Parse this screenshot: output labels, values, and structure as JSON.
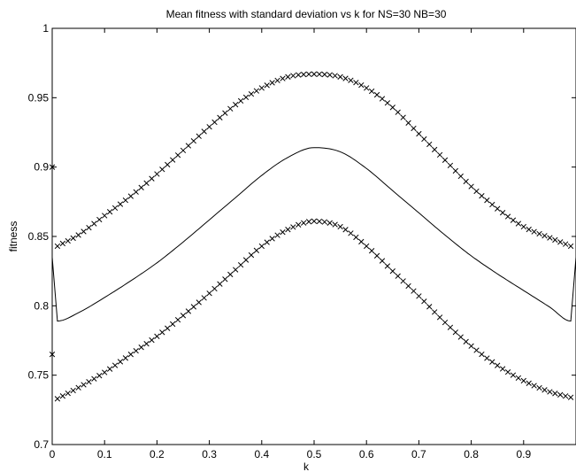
{
  "chart_data": {
    "type": "line",
    "title": "Mean fitness with standard deviation vs k for NS=30 NB=30",
    "xlabel": "k",
    "ylabel": "fitness",
    "xlim": [
      0,
      1
    ],
    "ylim": [
      0.7,
      1
    ],
    "grid": false,
    "xticks": [
      0,
      0.1,
      0.2,
      0.3,
      0.4,
      0.5,
      0.6,
      0.7,
      0.8,
      0.9
    ],
    "xtick_labels": [
      "0",
      "0.1",
      "0.2",
      "0.3",
      "0.4",
      "0.5",
      "0.6",
      "0.7",
      "0.8",
      "0.9"
    ],
    "yticks": [
      0.7,
      0.75,
      0.8,
      0.85,
      0.9,
      0.95,
      1
    ],
    "ytick_labels": [
      "0.7",
      "0.75",
      "0.8",
      "0.85",
      "0.9",
      "0.95",
      "1"
    ],
    "series": [
      {
        "style": "solid-line",
        "color": "#000000",
        "x": [
          0,
          0.01,
          0.05,
          0.1,
          0.15,
          0.2,
          0.25,
          0.3,
          0.35,
          0.4,
          0.45,
          0.5,
          0.55,
          0.6,
          0.65,
          0.7,
          0.75,
          0.8,
          0.85,
          0.9,
          0.95,
          0.99,
          1
        ],
        "values": [
          0.835,
          0.789,
          0.795,
          0.806,
          0.818,
          0.831,
          0.846,
          0.862,
          0.878,
          0.894,
          0.907,
          0.914,
          0.911,
          0.899,
          0.883,
          0.867,
          0.851,
          0.836,
          0.823,
          0.811,
          0.799,
          0.789,
          0.835
        ]
      },
      {
        "style": "x-markers",
        "color": "#000000",
        "x": [
          0,
          0.01,
          0.05,
          0.1,
          0.15,
          0.2,
          0.25,
          0.3,
          0.35,
          0.4,
          0.45,
          0.5,
          0.55,
          0.6,
          0.65,
          0.7,
          0.75,
          0.8,
          0.85,
          0.9,
          0.95,
          0.99
        ],
        "values": [
          0.9,
          0.843,
          0.851,
          0.865,
          0.879,
          0.895,
          0.912,
          0.929,
          0.945,
          0.957,
          0.965,
          0.967,
          0.965,
          0.957,
          0.943,
          0.924,
          0.905,
          0.886,
          0.87,
          0.857,
          0.849,
          0.843
        ]
      },
      {
        "style": "x-markers",
        "color": "#000000",
        "x": [
          0,
          0.01,
          0.05,
          0.1,
          0.15,
          0.2,
          0.25,
          0.3,
          0.35,
          0.4,
          0.45,
          0.5,
          0.55,
          0.6,
          0.65,
          0.7,
          0.75,
          0.8,
          0.85,
          0.9,
          0.95,
          0.99
        ],
        "values": [
          0.765,
          0.733,
          0.741,
          0.752,
          0.765,
          0.778,
          0.793,
          0.809,
          0.826,
          0.843,
          0.855,
          0.861,
          0.857,
          0.843,
          0.825,
          0.807,
          0.788,
          0.771,
          0.757,
          0.746,
          0.738,
          0.734
        ]
      }
    ]
  }
}
